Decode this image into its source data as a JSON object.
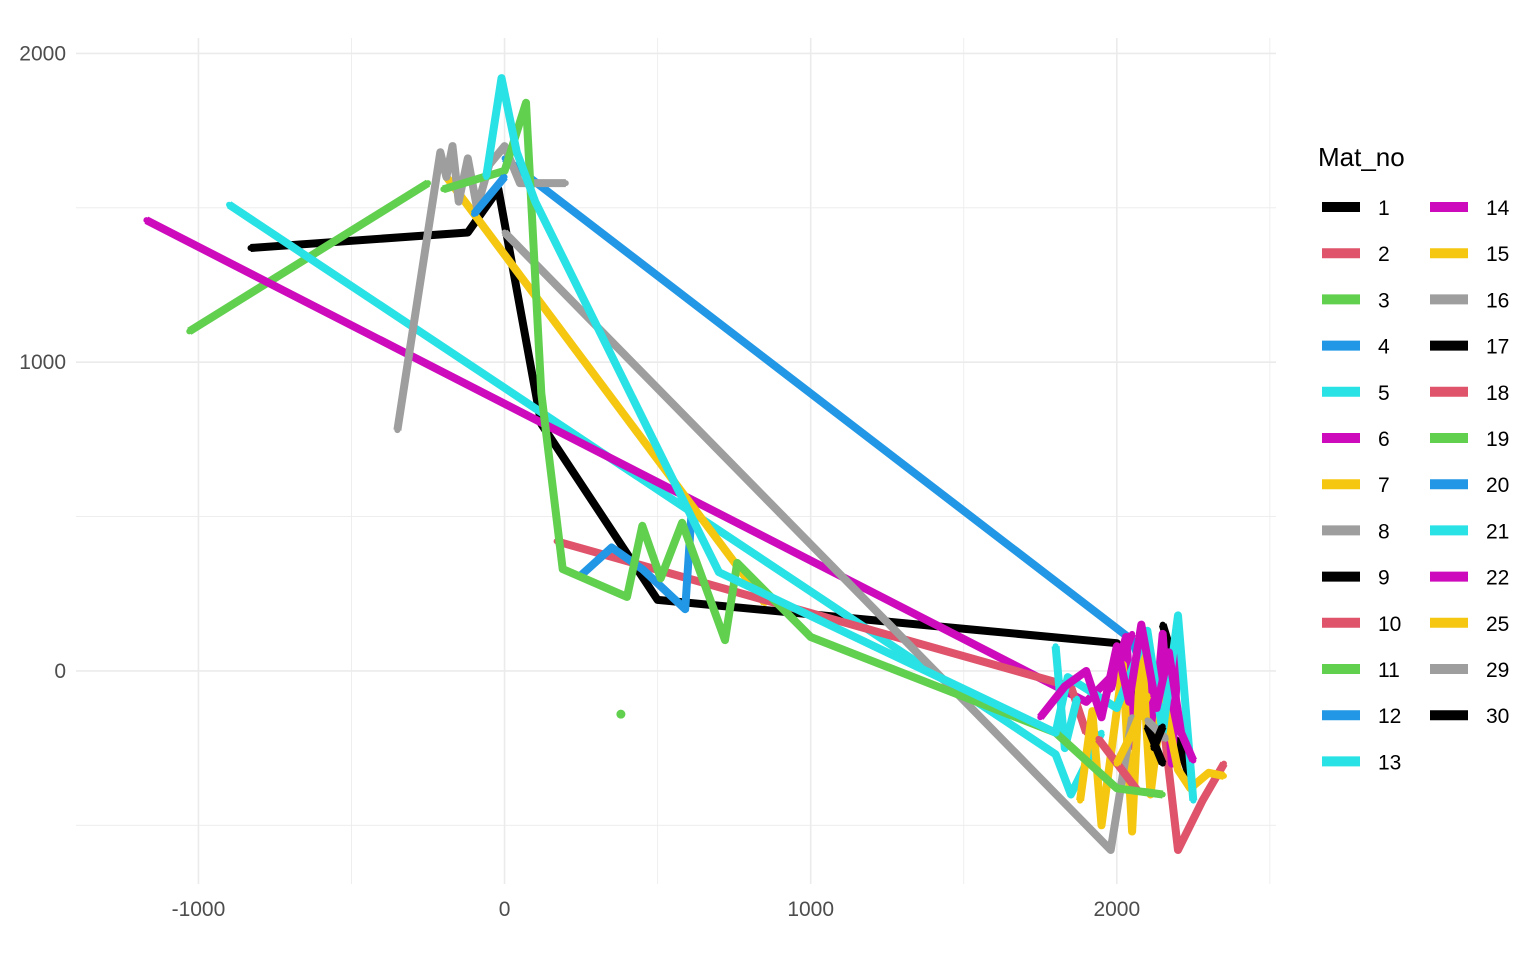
{
  "chart_data": {
    "type": "line",
    "title": "",
    "xlabel": "",
    "ylabel": "",
    "xlim": [
      -1400,
      2520
    ],
    "ylim": [
      -690,
      2050
    ],
    "x_ticks": [
      -1000,
      0,
      1000,
      2000
    ],
    "y_ticks": [
      0,
      1000,
      2000
    ],
    "x_tick_labels": [
      "-1000",
      "0",
      "1000",
      "2000"
    ],
    "y_tick_labels": [
      "0",
      "1000",
      "2000"
    ],
    "grid": true,
    "legend": {
      "title": "Mat_no",
      "position": "right"
    },
    "series": [
      {
        "name": "1",
        "color": "#000000",
        "points": [
          [
            -830,
            1370
          ],
          [
            -120,
            1420
          ],
          [
            -20,
            1560
          ],
          [
            120,
            800
          ],
          [
            500,
            230
          ],
          [
            2000,
            90
          ],
          [
            2080,
            -140
          ],
          [
            2200,
            -230
          ],
          [
            2250,
            -380
          ]
        ]
      },
      {
        "name": "2",
        "color": "#DF536B",
        "points": [
          [
            2050,
            0
          ],
          [
            2150,
            -150
          ],
          [
            2200,
            -580
          ],
          [
            2280,
            -420
          ],
          [
            2350,
            -300
          ]
        ]
      },
      {
        "name": "3",
        "color": "#61D04F",
        "points": [
          [
            -1030,
            1100
          ],
          [
            -250,
            1580
          ]
        ]
      },
      {
        "name": "4",
        "color": "#2297E6",
        "points": [
          [
            0,
            1660
          ],
          [
            2050,
            100
          ],
          [
            2100,
            -40
          ]
        ]
      },
      {
        "name": "5",
        "color": "#28E2E5",
        "points": [
          [
            -900,
            1510
          ],
          [
            1800,
            -270
          ],
          [
            1850,
            -400
          ],
          [
            1950,
            -200
          ]
        ]
      },
      {
        "name": "6",
        "color": "#CD0BBC",
        "points": [
          [
            -1170,
            1460
          ],
          [
            1900,
            -100
          ],
          [
            2000,
            0
          ],
          [
            2050,
            120
          ]
        ]
      },
      {
        "name": "7",
        "color": "#F5C710",
        "points": [
          [
            -190,
            1600
          ],
          [
            850,
            220
          ]
        ]
      },
      {
        "name": "8",
        "color": "#9E9E9E",
        "points": [
          [
            -350,
            780
          ],
          [
            -210,
            1680
          ],
          [
            -190,
            1600
          ],
          [
            -170,
            1700
          ],
          [
            -150,
            1520
          ],
          [
            -120,
            1660
          ],
          [
            -90,
            1500
          ],
          [
            -50,
            1640
          ],
          [
            0,
            1700
          ],
          [
            50,
            1580
          ],
          [
            150,
            1580
          ],
          [
            200,
            1580
          ]
        ]
      },
      {
        "name": "9",
        "color": "#000000",
        "points": [
          [
            2150,
            150
          ],
          [
            2200,
            -10
          ]
        ]
      },
      {
        "name": "10",
        "color": "#DF536B",
        "points": [
          [
            170,
            420
          ],
          [
            1850,
            -50
          ],
          [
            1900,
            -200
          ]
        ]
      },
      {
        "name": "11",
        "color": "#61D04F",
        "points": [
          [
            380,
            -140
          ]
        ]
      },
      {
        "name": "12",
        "color": "#2297E6",
        "points": [
          [
            250,
            310
          ],
          [
            350,
            400
          ],
          [
            450,
            330
          ],
          [
            590,
            200
          ],
          [
            610,
            500
          ]
        ]
      },
      {
        "name": "13",
        "color": "#28E2E5",
        "points": [
          [
            1800,
            80
          ],
          [
            1830,
            -250
          ],
          [
            1870,
            -90
          ]
        ]
      },
      {
        "name": "14",
        "color": "#CD0BBC",
        "points": [
          [
            1980,
            -60
          ],
          [
            2030,
            110
          ],
          [
            2060,
            -250
          ],
          [
            2090,
            130
          ],
          [
            2120,
            -200
          ],
          [
            2150,
            120
          ],
          [
            2180,
            -300
          ],
          [
            2200,
            50
          ]
        ]
      },
      {
        "name": "15",
        "color": "#F5C710",
        "points": [
          [
            1880,
            -420
          ],
          [
            1920,
            -130
          ],
          [
            1950,
            -500
          ],
          [
            1990,
            -200
          ],
          [
            2020,
            20
          ],
          [
            2050,
            -520
          ],
          [
            2080,
            100
          ],
          [
            2110,
            -400
          ],
          [
            2150,
            -80
          ],
          [
            2200,
            -320
          ],
          [
            2240,
            -380
          ],
          [
            2300,
            -330
          ],
          [
            2350,
            -340
          ]
        ]
      },
      {
        "name": "16",
        "color": "#9E9E9E",
        "points": [
          [
            0,
            1420
          ],
          [
            1980,
            -580
          ],
          [
            2050,
            -150
          ]
        ]
      },
      {
        "name": "17",
        "color": "#000000",
        "points": [
          [
            2100,
            -180
          ],
          [
            2150,
            -300
          ]
        ]
      },
      {
        "name": "18",
        "color": "#DF536B",
        "points": [
          [
            1940,
            -220
          ],
          [
            2070,
            -390
          ]
        ]
      },
      {
        "name": "19",
        "color": "#61D04F",
        "points": [
          [
            -200,
            1560
          ],
          [
            0,
            1620
          ],
          [
            70,
            1840
          ],
          [
            120,
            900
          ],
          [
            190,
            330
          ],
          [
            400,
            240
          ],
          [
            450,
            470
          ],
          [
            510,
            300
          ],
          [
            580,
            480
          ],
          [
            720,
            100
          ],
          [
            760,
            350
          ],
          [
            1000,
            110
          ],
          [
            1800,
            -200
          ],
          [
            2000,
            -380
          ],
          [
            2150,
            -400
          ]
        ]
      },
      {
        "name": "20",
        "color": "#2297E6",
        "points": [
          [
            -100,
            1480
          ],
          [
            0,
            1600
          ]
        ]
      },
      {
        "name": "21",
        "color": "#28E2E5",
        "points": [
          [
            -60,
            1600
          ],
          [
            -10,
            1920
          ],
          [
            40,
            1680
          ],
          [
            100,
            1520
          ],
          [
            700,
            320
          ],
          [
            1800,
            -200
          ],
          [
            1840,
            -20
          ],
          [
            2000,
            -120
          ],
          [
            2100,
            130
          ],
          [
            2150,
            -200
          ],
          [
            2200,
            180
          ],
          [
            2250,
            -420
          ]
        ]
      },
      {
        "name": "22",
        "color": "#CD0BBC",
        "points": [
          [
            1750,
            -150
          ],
          [
            1830,
            -50
          ],
          [
            1900,
            0
          ],
          [
            1950,
            -150
          ],
          [
            2000,
            80
          ],
          [
            2040,
            -100
          ],
          [
            2080,
            150
          ],
          [
            2130,
            -120
          ],
          [
            2170,
            60
          ],
          [
            2210,
            -200
          ],
          [
            2250,
            -290
          ]
        ]
      },
      {
        "name": "25",
        "color": "#F5C710",
        "points": [
          [
            2000,
            -300
          ],
          [
            2050,
            -200
          ],
          [
            2100,
            -80
          ]
        ]
      },
      {
        "name": "29",
        "color": "#9E9E9E",
        "points": [
          [
            2100,
            -160
          ],
          [
            2160,
            -220
          ]
        ]
      },
      {
        "name": "30",
        "color": "#000000",
        "points": [
          [
            2120,
            -250
          ],
          [
            2150,
            -180
          ]
        ]
      }
    ]
  }
}
